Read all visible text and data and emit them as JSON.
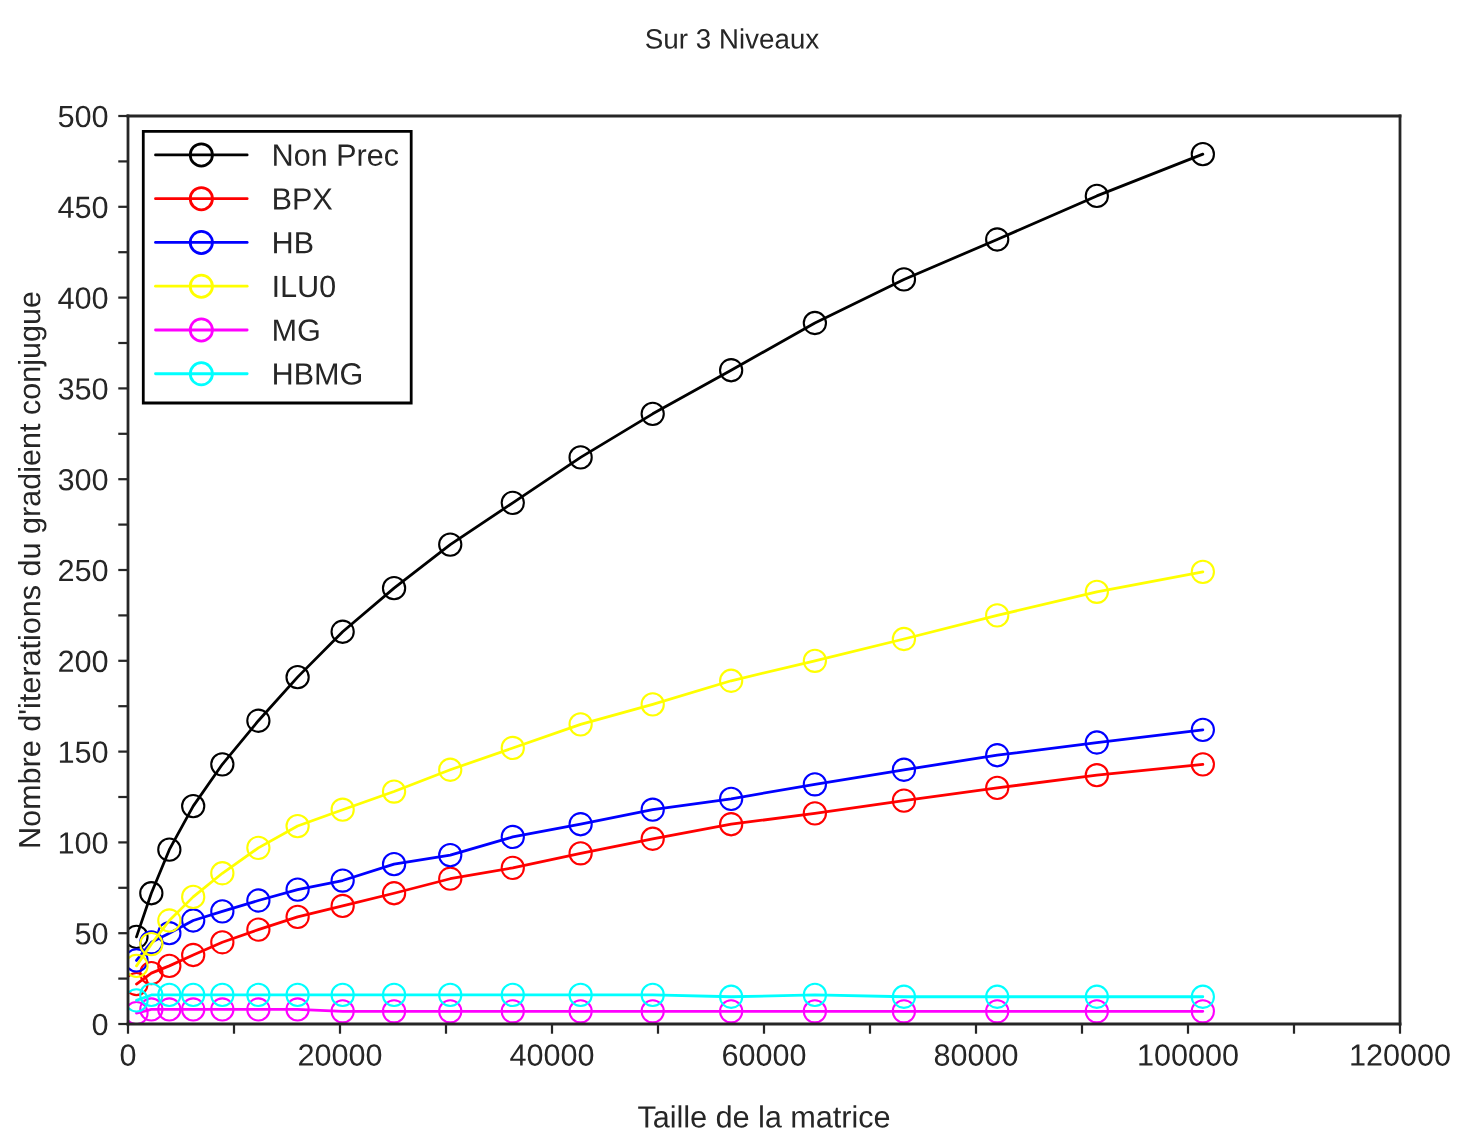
{
  "chart_data": {
    "type": "line",
    "title": "Sur 3 Niveaux",
    "xlabel": "Taille de la matrice",
    "ylabel": "Nombre d'iterations du gradient conjugue",
    "x": [
      800,
      2200,
      3900,
      6150,
      8900,
      12300,
      16000,
      20250,
      25100,
      30400,
      36300,
      42700,
      49500,
      56900,
      64800,
      73200,
      82000,
      91400,
      101400
    ],
    "series": [
      {
        "name": "Non Prec",
        "color": "#000000",
        "values": [
          48,
          72,
          96,
          120,
          143,
          167,
          191,
          216,
          240,
          264,
          287,
          312,
          336,
          360,
          386,
          410,
          432,
          456,
          479
        ]
      },
      {
        "name": "BPX",
        "color": "#ff0000",
        "values": [
          22,
          28,
          32,
          38,
          45,
          52,
          59,
          65,
          72,
          80,
          86,
          94,
          102,
          110,
          116,
          123,
          130,
          137,
          143
        ]
      },
      {
        "name": "HB",
        "color": "#0000ff",
        "values": [
          35,
          45,
          50,
          57,
          62,
          68,
          74,
          79,
          88,
          93,
          103,
          110,
          118,
          124,
          132,
          140,
          148,
          155,
          162
        ]
      },
      {
        "name": "ILU0",
        "color": "#ffff00",
        "values": [
          32,
          44,
          57,
          70,
          83,
          97,
          109,
          118,
          128,
          140,
          152,
          165,
          176,
          189,
          200,
          212,
          225,
          238,
          249
        ]
      },
      {
        "name": "MG",
        "color": "#ff00ff",
        "values": [
          6,
          8,
          8,
          8,
          8,
          8,
          8,
          7,
          7,
          7,
          7,
          7,
          7,
          7,
          7,
          7,
          7,
          7,
          7
        ]
      },
      {
        "name": "HBMG",
        "color": "#00ffff",
        "values": [
          13,
          16,
          16,
          16,
          16,
          16,
          16,
          16,
          16,
          16,
          16,
          16,
          16,
          15,
          16,
          15,
          15,
          15,
          15
        ]
      }
    ],
    "xlim": [
      0,
      120000
    ],
    "xticks": [
      0,
      {
        "value": 10000,
        "label": null
      },
      20000,
      {
        "value": 30000,
        "label": null
      },
      40000,
      {
        "value": 50000,
        "label": null
      },
      60000,
      {
        "value": 70000,
        "label": null
      },
      80000,
      {
        "value": 90000,
        "label": null
      },
      100000,
      {
        "value": 110000,
        "label": null
      },
      120000
    ],
    "ylim": [
      0,
      500
    ],
    "yticks": [
      0,
      {
        "value": 25,
        "label": null
      },
      50,
      {
        "value": 75,
        "label": null
      },
      100,
      {
        "value": 125,
        "label": null
      },
      150,
      {
        "value": 175,
        "label": null
      },
      200,
      {
        "value": 225,
        "label": null
      },
      250,
      {
        "value": 275,
        "label": null
      },
      300,
      {
        "value": 325,
        "label": null
      },
      350,
      {
        "value": 375,
        "label": null
      },
      400,
      {
        "value": 425,
        "label": null
      },
      450,
      {
        "value": 475,
        "label": null
      },
      500
    ],
    "grid": false,
    "legend": "top left",
    "marker": "circle",
    "line_style": "solid"
  }
}
